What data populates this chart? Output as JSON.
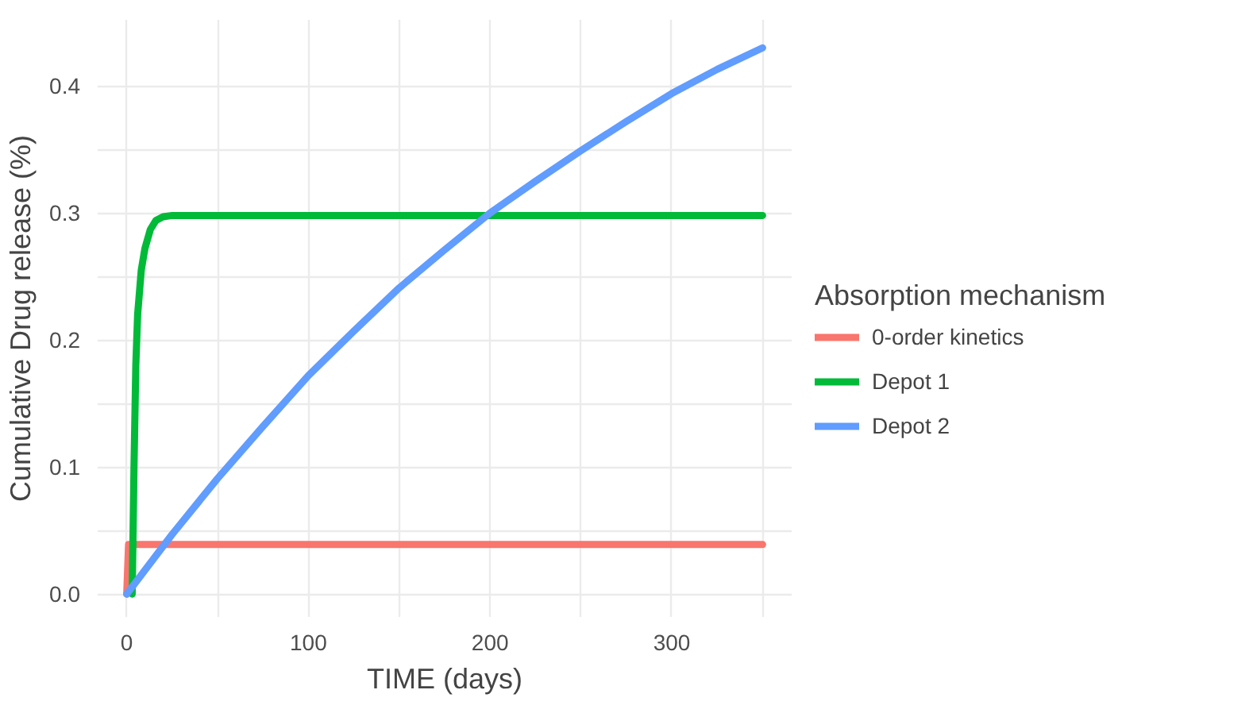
{
  "chart_data": {
    "type": "line",
    "xlabel": "TIME (days)",
    "ylabel": "Cumulative Drug release (%)",
    "legend_title": "Absorption mechanism",
    "xlim": [
      -16,
      366
    ],
    "ylim": [
      -0.018,
      0.452
    ],
    "xticks": [
      0,
      {
        "value": 50,
        "label": null
      },
      100,
      {
        "value": 150,
        "label": null
      },
      200,
      {
        "value": 250,
        "label": null
      },
      300,
      {
        "value": 350,
        "label": null
      }
    ],
    "yticks": [
      {
        "value": 0,
        "label": "0.0"
      },
      {
        "value": 0.05,
        "label": null
      },
      0.1,
      {
        "value": 0.15,
        "label": null
      },
      0.2,
      {
        "value": 0.25,
        "label": null
      },
      0.3,
      {
        "value": 0.35,
        "label": null
      },
      0.4
    ],
    "grid": true,
    "legend": "right",
    "marker": "none",
    "line_style": "solid",
    "series": [
      {
        "name": "0-order kinetics",
        "color": "#f8766d",
        "x": [
          0,
          1,
          350
        ],
        "values": [
          0,
          0.039,
          0.039
        ]
      },
      {
        "name": "Depot 1",
        "color": "#00ba38",
        "x": [
          3,
          4,
          5,
          6,
          8,
          10,
          13,
          16,
          20,
          25,
          35,
          350
        ],
        "values": [
          0,
          0.1,
          0.18,
          0.22,
          0.255,
          0.272,
          0.287,
          0.294,
          0.297,
          0.298,
          0.298,
          0.298
        ]
      },
      {
        "name": "Depot 2",
        "color": "#619cff",
        "x": [
          0,
          25,
          50,
          75,
          100,
          125,
          150,
          175,
          200,
          225,
          250,
          275,
          300,
          325,
          350
        ],
        "values": [
          0,
          0.047,
          0.091,
          0.132,
          0.172,
          0.207,
          0.241,
          0.271,
          0.3,
          0.325,
          0.349,
          0.372,
          0.394,
          0.413,
          0.43
        ]
      }
    ]
  }
}
